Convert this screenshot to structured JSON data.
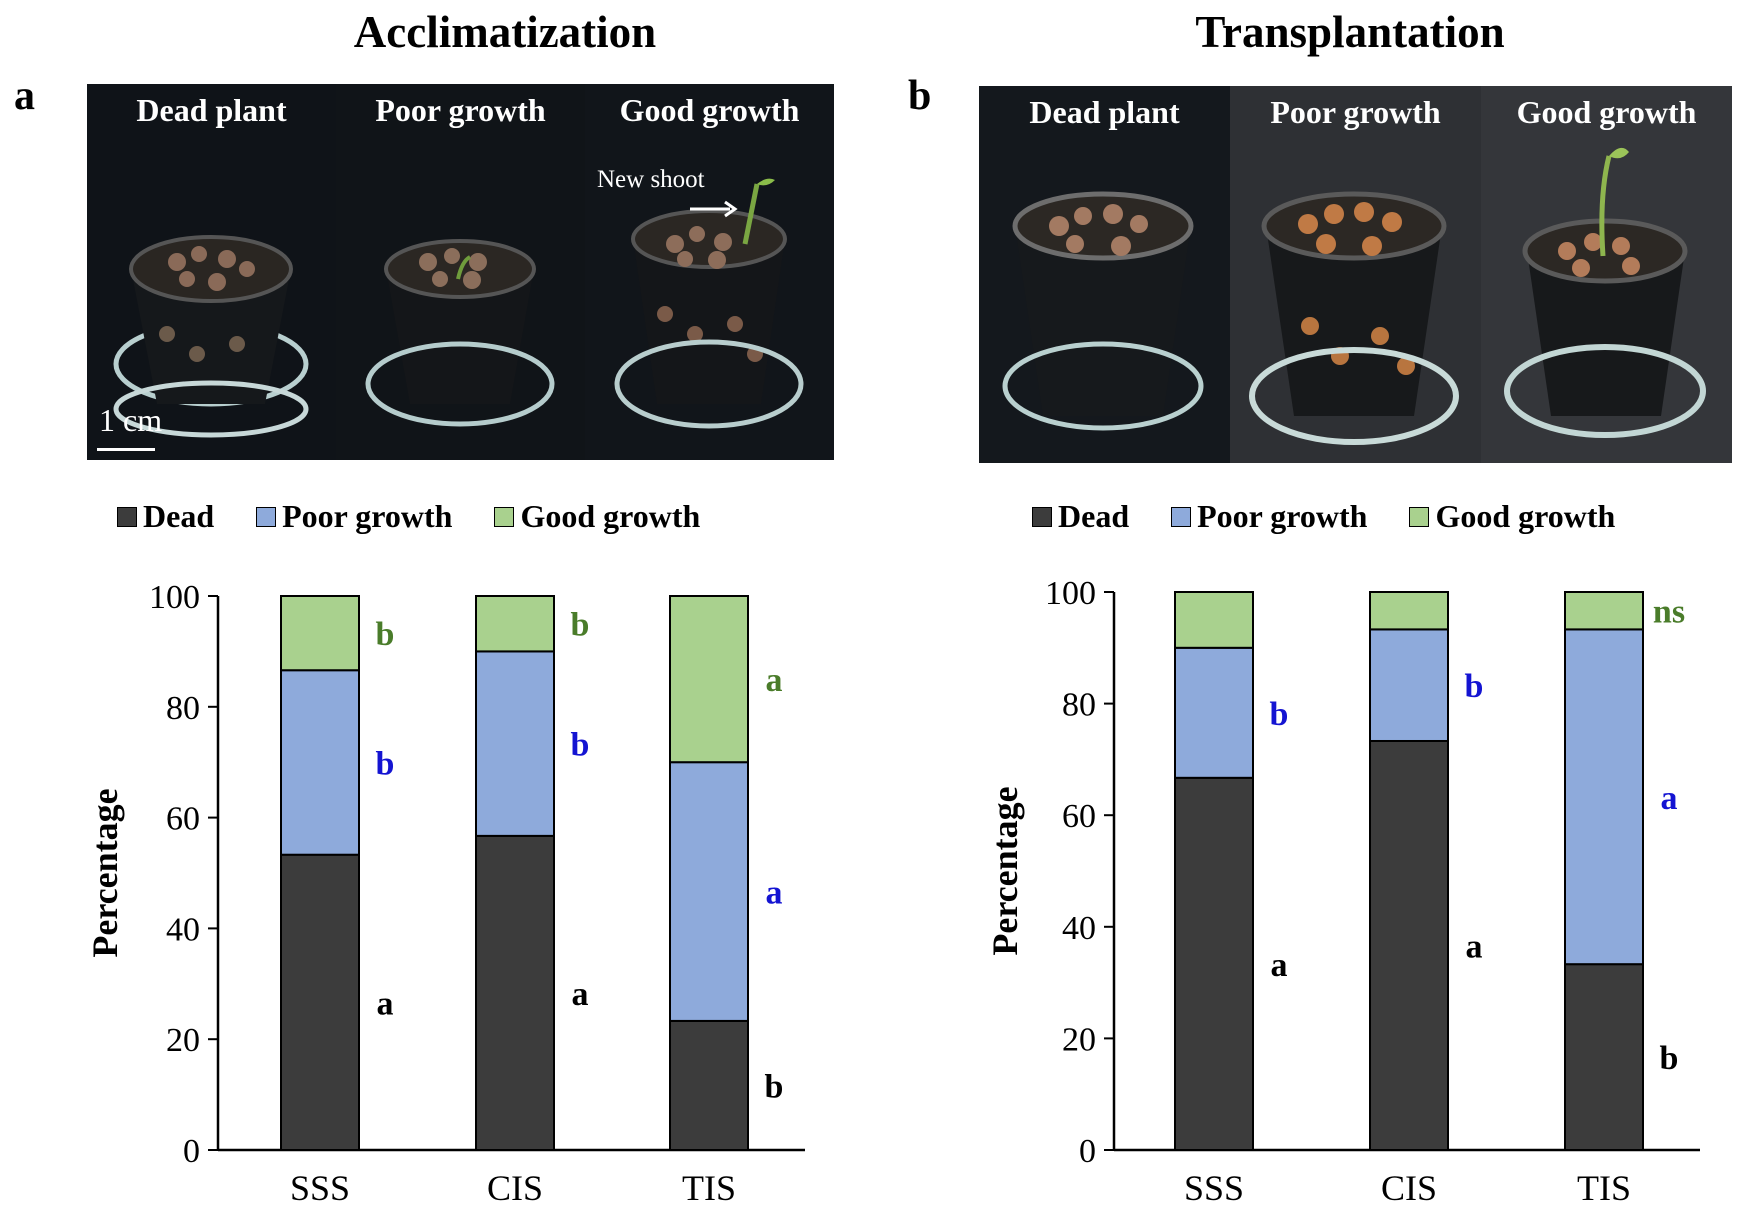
{
  "titles": {
    "a": "Acclimatization",
    "b": "Transplantation"
  },
  "panel_letters": {
    "a": "a",
    "b": "b"
  },
  "photo_a": {
    "captions": [
      "Dead plant",
      "Poor growth",
      "Good growth"
    ],
    "annotation": "New shoot",
    "scale": "1 cm"
  },
  "photo_b": {
    "captions": [
      "Dead plant",
      "Poor growth",
      "Good growth"
    ]
  },
  "legend": [
    "Dead",
    "Poor growth",
    "Good growth"
  ],
  "colors": {
    "dead": "#3c3c3c",
    "poor": "#8eaadb",
    "good": "#a9d18e",
    "blue_letter": "#1414d2",
    "green_letter": "#4a7c2a"
  },
  "chart_data": [
    {
      "type": "bar",
      "stacked": true,
      "panel": "a",
      "categories": [
        "SSS",
        "CIS",
        "TIS"
      ],
      "series": [
        {
          "name": "Dead",
          "values": [
            53.3,
            56.7,
            23.3
          ],
          "letters": [
            "a",
            "a",
            "b"
          ]
        },
        {
          "name": "Poor growth",
          "values": [
            33.3,
            33.3,
            46.7
          ],
          "letters": [
            "b",
            "b",
            "a"
          ]
        },
        {
          "name": "Good growth",
          "values": [
            13.4,
            10.0,
            30.0
          ],
          "letters": [
            "b",
            "b",
            "a"
          ]
        }
      ],
      "ylabel": "Percentage",
      "ylim": [
        0,
        100
      ],
      "yticks": [
        0,
        20,
        40,
        60,
        80,
        100
      ]
    },
    {
      "type": "bar",
      "stacked": true,
      "panel": "b",
      "categories": [
        "SSS",
        "CIS",
        "TIS"
      ],
      "series": [
        {
          "name": "Dead",
          "values": [
            66.7,
            73.3,
            33.3
          ],
          "letters": [
            "a",
            "a",
            "b"
          ]
        },
        {
          "name": "Poor growth",
          "values": [
            23.3,
            20.0,
            60.0
          ],
          "letters": [
            "b",
            "b",
            "a"
          ]
        },
        {
          "name": "Good growth",
          "values": [
            10.0,
            6.7,
            6.7
          ],
          "letters": [
            "",
            "",
            "ns"
          ]
        }
      ],
      "ylabel": "Percentage",
      "ylim": [
        0,
        100
      ],
      "yticks": [
        0,
        20,
        40,
        60,
        80,
        100
      ]
    }
  ]
}
